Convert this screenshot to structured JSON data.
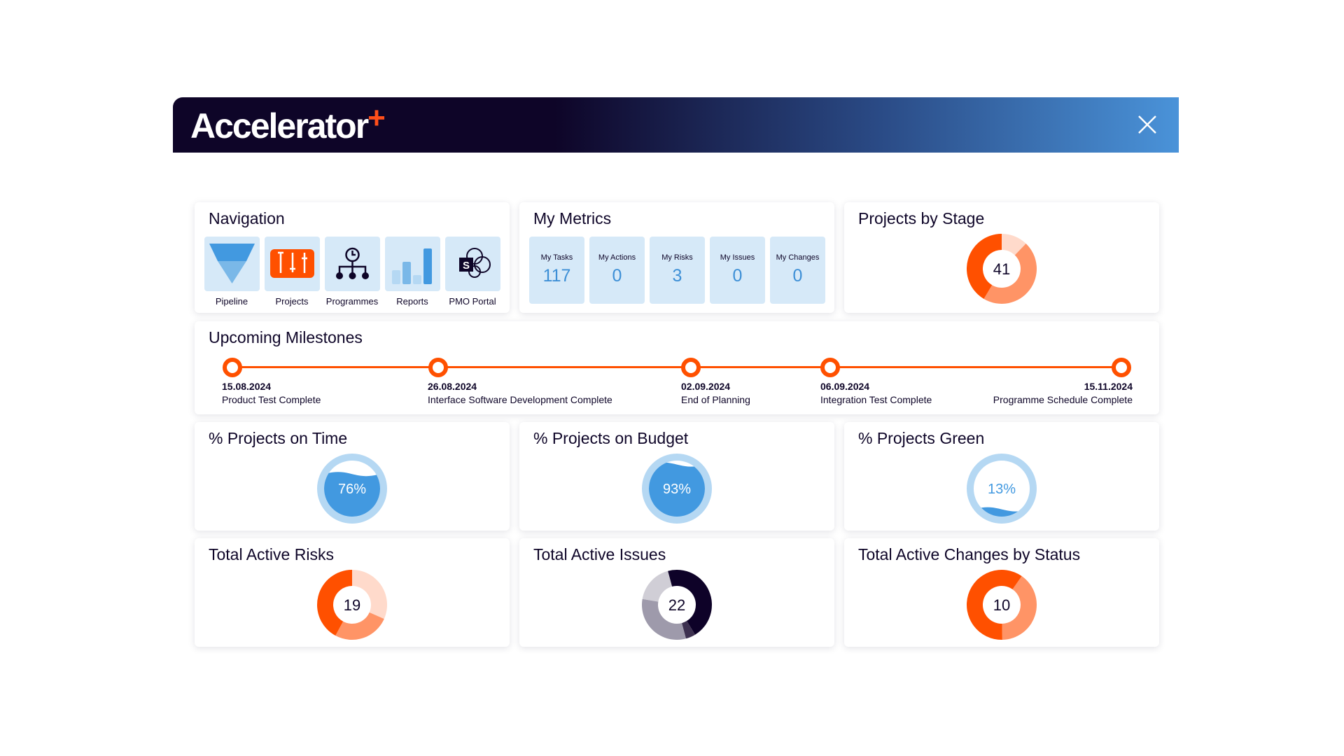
{
  "header": {
    "logo": "Accelerator",
    "logo_plus": "+",
    "close_icon": "close-icon"
  },
  "colors": {
    "orange": "#ff5000",
    "orange_mid": "#ff9466",
    "orange_light": "#ffdacb",
    "blue": "#4299e0",
    "blue_light": "#b5d8f3",
    "tile": "#d6e9f8",
    "navy": "#0e0528"
  },
  "navigation": {
    "title": "Navigation",
    "items": [
      {
        "label": "Pipeline",
        "icon": "funnel-icon"
      },
      {
        "label": "Projects",
        "icon": "sliders-icon"
      },
      {
        "label": "Programmes",
        "icon": "org-chart-clock-icon"
      },
      {
        "label": "Reports",
        "icon": "bar-chart-icon"
      },
      {
        "label": "PMO Portal",
        "icon": "sharepoint-icon"
      }
    ]
  },
  "metrics": {
    "title": "My Metrics",
    "items": [
      {
        "label": "My Tasks",
        "value": "117"
      },
      {
        "label": "My Actions",
        "value": "0"
      },
      {
        "label": "My Risks",
        "value": "3"
      },
      {
        "label": "My Issues",
        "value": "0"
      },
      {
        "label": "My Changes",
        "value": "0"
      }
    ]
  },
  "milestones": {
    "title": "Upcoming Milestones",
    "items": [
      {
        "date": "15.08.2024",
        "label": "Product Test Complete"
      },
      {
        "date": "26.08.2024",
        "label": "Interface Software Development Complete"
      },
      {
        "date": "02.09.2024",
        "label": "End of Planning"
      },
      {
        "date": "06.09.2024",
        "label": "Integration Test Complete"
      },
      {
        "date": "15.11.2024",
        "label": "Programme Schedule Complete"
      }
    ]
  },
  "gauges": [
    {
      "title": "% Projects on Time",
      "value": 76,
      "label": "76%"
    },
    {
      "title": "% Projects on Budget",
      "value": 93,
      "label": "93%"
    },
    {
      "title": "% Projects Green",
      "value": 13,
      "label": "13%"
    }
  ],
  "chart_data": [
    {
      "type": "pie",
      "title": "Projects by Stage",
      "total": "41",
      "start_deg": 0,
      "values": [
        5,
        19,
        17
      ],
      "colors": [
        "#ffdacb",
        "#ff9466",
        "#ff5000"
      ]
    },
    {
      "type": "pie",
      "title": "Total Active Risks",
      "total": "19",
      "start_deg": 0,
      "values": [
        6,
        5,
        8
      ],
      "colors": [
        "#ffdacb",
        "#ff9466",
        "#ff5000"
      ]
    },
    {
      "type": "pie",
      "title": "Total Active Issues",
      "total": "22",
      "start_deg": -15,
      "values": [
        10,
        1,
        7,
        4
      ],
      "colors": [
        "#0e0228",
        "#3d3150",
        "#9e9aab",
        "#d0ced6"
      ]
    },
    {
      "type": "pie",
      "title": "Total Active Changes by Status",
      "total": "10",
      "start_deg": 35,
      "values": [
        4,
        6
      ],
      "colors": [
        "#ff9466",
        "#ff5000"
      ]
    }
  ]
}
